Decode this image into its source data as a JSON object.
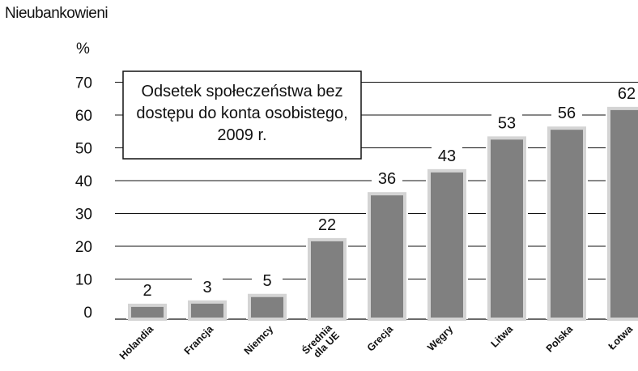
{
  "heading": "Nieubankowieni",
  "unit": "%",
  "chart_data": {
    "type": "bar",
    "title": "Odsetek społeczeństwa bez dostępu do konta osobistego, 2009 r.",
    "title_lines": [
      "Odsetek społeczeństwa bez",
      "dostępu do konta osobistego,",
      "2009 r."
    ],
    "xlabel": "",
    "ylabel": "%",
    "ylim": [
      0,
      70
    ],
    "yticks": [
      "0",
      "10",
      "20",
      "30",
      "40",
      "50",
      "60",
      "70"
    ],
    "grid": true,
    "categories": [
      [
        "Holandia"
      ],
      [
        "Francja"
      ],
      [
        "Niemcy"
      ],
      [
        "Średnia",
        "dla UE"
      ],
      [
        "Grecja"
      ],
      [
        "Węgry"
      ],
      [
        "Litwa"
      ],
      [
        "Polska"
      ],
      [
        "Łotwa"
      ]
    ],
    "values": [
      2,
      3,
      5,
      22,
      36,
      43,
      53,
      56,
      62
    ],
    "value_labels": [
      "2",
      "3",
      "5",
      "22",
      "36",
      "43",
      "53",
      "56",
      "62"
    ],
    "bar_color": "#808080",
    "bar_edge_color": "#d4d4d4",
    "grid_color": "#111111"
  }
}
